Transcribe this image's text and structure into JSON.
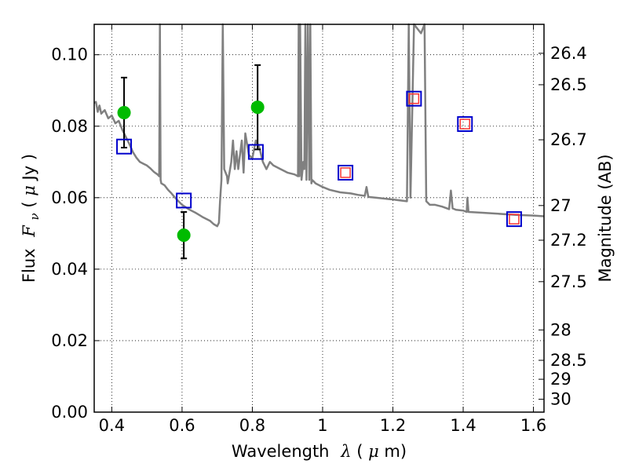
{
  "chart_data": {
    "type": "scatter",
    "xlabel": "Wavelength",
    "xlabel_symbol": "λ",
    "xlabel_unit_open": " (",
    "xlabel_unit_mu": "μ",
    "xlabel_unit_rest": "m)",
    "ylabel": "Flux",
    "ylabel_symbol": "F",
    "ylabel_symbol_sub": "ν",
    "ylabel_unit_open": " ( ",
    "ylabel_unit_mu": "μ",
    "ylabel_unit_rest": "Jy )",
    "y2label": "Magnitude (AB)",
    "xlim": [
      0.35,
      1.63
    ],
    "ylim": [
      0.0,
      0.1085
    ],
    "x_ticks": [
      0.4,
      0.6,
      0.8,
      1.0,
      1.2,
      1.4,
      1.6
    ],
    "x_tick_labels": [
      "0.4",
      "0.6",
      "0.8",
      "1",
      "1.2",
      "1.4",
      "1.6"
    ],
    "y_ticks": [
      0.0,
      0.02,
      0.04,
      0.06,
      0.08,
      0.1
    ],
    "y_tick_labels": [
      "0.00",
      "0.02",
      "0.04",
      "0.06",
      "0.08",
      "0.10"
    ],
    "y2_ticks": [
      {
        "label": "26.4",
        "flux": 0.1004
      },
      {
        "label": "26.5",
        "flux": 0.0916
      },
      {
        "label": "26.7",
        "flux": 0.0762
      },
      {
        "label": "27",
        "flux": 0.0578
      },
      {
        "label": "27.2",
        "flux": 0.0481
      },
      {
        "label": "27.5",
        "flux": 0.0365
      },
      {
        "label": "28",
        "flux": 0.023
      },
      {
        "label": "28.5",
        "flux": 0.0145
      },
      {
        "label": "29",
        "flux": 0.0092
      },
      {
        "label": "30",
        "flux": 0.0036
      }
    ],
    "grid": true,
    "series": [
      {
        "kind": "line",
        "color": "#808080",
        "x": [
          0.35,
          0.355,
          0.36,
          0.365,
          0.37,
          0.38,
          0.39,
          0.4,
          0.41,
          0.42,
          0.43,
          0.44,
          0.45,
          0.46,
          0.47,
          0.48,
          0.49,
          0.5,
          0.51,
          0.52,
          0.53,
          0.535,
          0.537,
          0.539,
          0.541,
          0.55,
          0.56,
          0.57,
          0.58,
          0.59,
          0.6,
          0.62,
          0.64,
          0.66,
          0.68,
          0.69,
          0.7,
          0.705,
          0.708,
          0.712,
          0.716,
          0.72,
          0.728,
          0.73,
          0.74,
          0.745,
          0.75,
          0.755,
          0.76,
          0.77,
          0.775,
          0.78,
          0.79,
          0.8,
          0.81,
          0.82,
          0.83,
          0.84,
          0.85,
          0.86,
          0.88,
          0.9,
          0.92,
          0.93,
          0.932,
          0.934,
          0.936,
          0.94,
          0.945,
          0.948,
          0.951,
          0.954,
          0.958,
          0.962,
          0.965,
          0.968,
          0.97,
          0.975,
          0.98,
          1.0,
          1.02,
          1.05,
          1.08,
          1.1,
          1.12,
          1.125,
          1.13,
          1.15,
          1.2,
          1.24,
          1.245,
          1.25,
          1.26,
          1.28,
          1.29,
          1.295,
          1.3,
          1.305,
          1.32,
          1.34,
          1.36,
          1.365,
          1.37,
          1.375,
          1.38,
          1.4,
          1.41,
          1.412,
          1.415,
          1.45,
          1.5,
          1.55,
          1.6,
          1.63
        ],
        "y": [
          0.0865,
          0.0868,
          0.084,
          0.0858,
          0.0835,
          0.0845,
          0.0822,
          0.083,
          0.0808,
          0.0815,
          0.079,
          0.077,
          0.075,
          0.0728,
          0.0712,
          0.07,
          0.0695,
          0.069,
          0.0682,
          0.0672,
          0.0665,
          0.066,
          0.1085,
          0.065,
          0.064,
          0.0635,
          0.0622,
          0.0612,
          0.06,
          0.059,
          0.058,
          0.0567,
          0.0557,
          0.0545,
          0.0535,
          0.0526,
          0.052,
          0.053,
          0.059,
          0.065,
          0.1085,
          0.068,
          0.066,
          0.064,
          0.07,
          0.076,
          0.068,
          0.073,
          0.068,
          0.076,
          0.067,
          0.078,
          0.072,
          0.071,
          0.076,
          0.074,
          0.07,
          0.068,
          0.07,
          0.069,
          0.068,
          0.067,
          0.0665,
          0.066,
          0.1085,
          0.066,
          0.1085,
          0.065,
          0.07,
          0.068,
          0.1085,
          0.065,
          0.1085,
          0.065,
          0.1085,
          0.064,
          0.065,
          0.0645,
          0.064,
          0.063,
          0.0622,
          0.0615,
          0.0612,
          0.0608,
          0.0605,
          0.063,
          0.0602,
          0.06,
          0.0595,
          0.059,
          0.1085,
          0.06,
          0.1085,
          0.106,
          0.1085,
          0.059,
          0.0585,
          0.058,
          0.058,
          0.0575,
          0.0568,
          0.062,
          0.057,
          0.0568,
          0.0566,
          0.0564,
          0.056,
          0.06,
          0.056,
          0.0558,
          0.0555,
          0.0552,
          0.055,
          0.0548
        ]
      },
      {
        "kind": "blue-squares",
        "color": "#0000cc",
        "x": [
          0.435,
          0.605,
          0.81,
          1.065,
          1.26,
          1.405,
          1.545
        ],
        "y": [
          0.0743,
          0.0592,
          0.0728,
          0.067,
          0.0877,
          0.0806,
          0.054
        ]
      },
      {
        "kind": "red-squares",
        "color": "#ff3333",
        "x": [
          1.065,
          1.26,
          1.405,
          1.545
        ],
        "y": [
          0.067,
          0.0877,
          0.0806,
          0.054
        ]
      },
      {
        "kind": "green-points",
        "color": "#00bb00",
        "x": [
          0.435,
          0.605,
          0.815
        ],
        "y": [
          0.0838,
          0.0495,
          0.0853
        ],
        "err": [
          0.0098,
          0.0065,
          0.0118
        ]
      }
    ]
  }
}
